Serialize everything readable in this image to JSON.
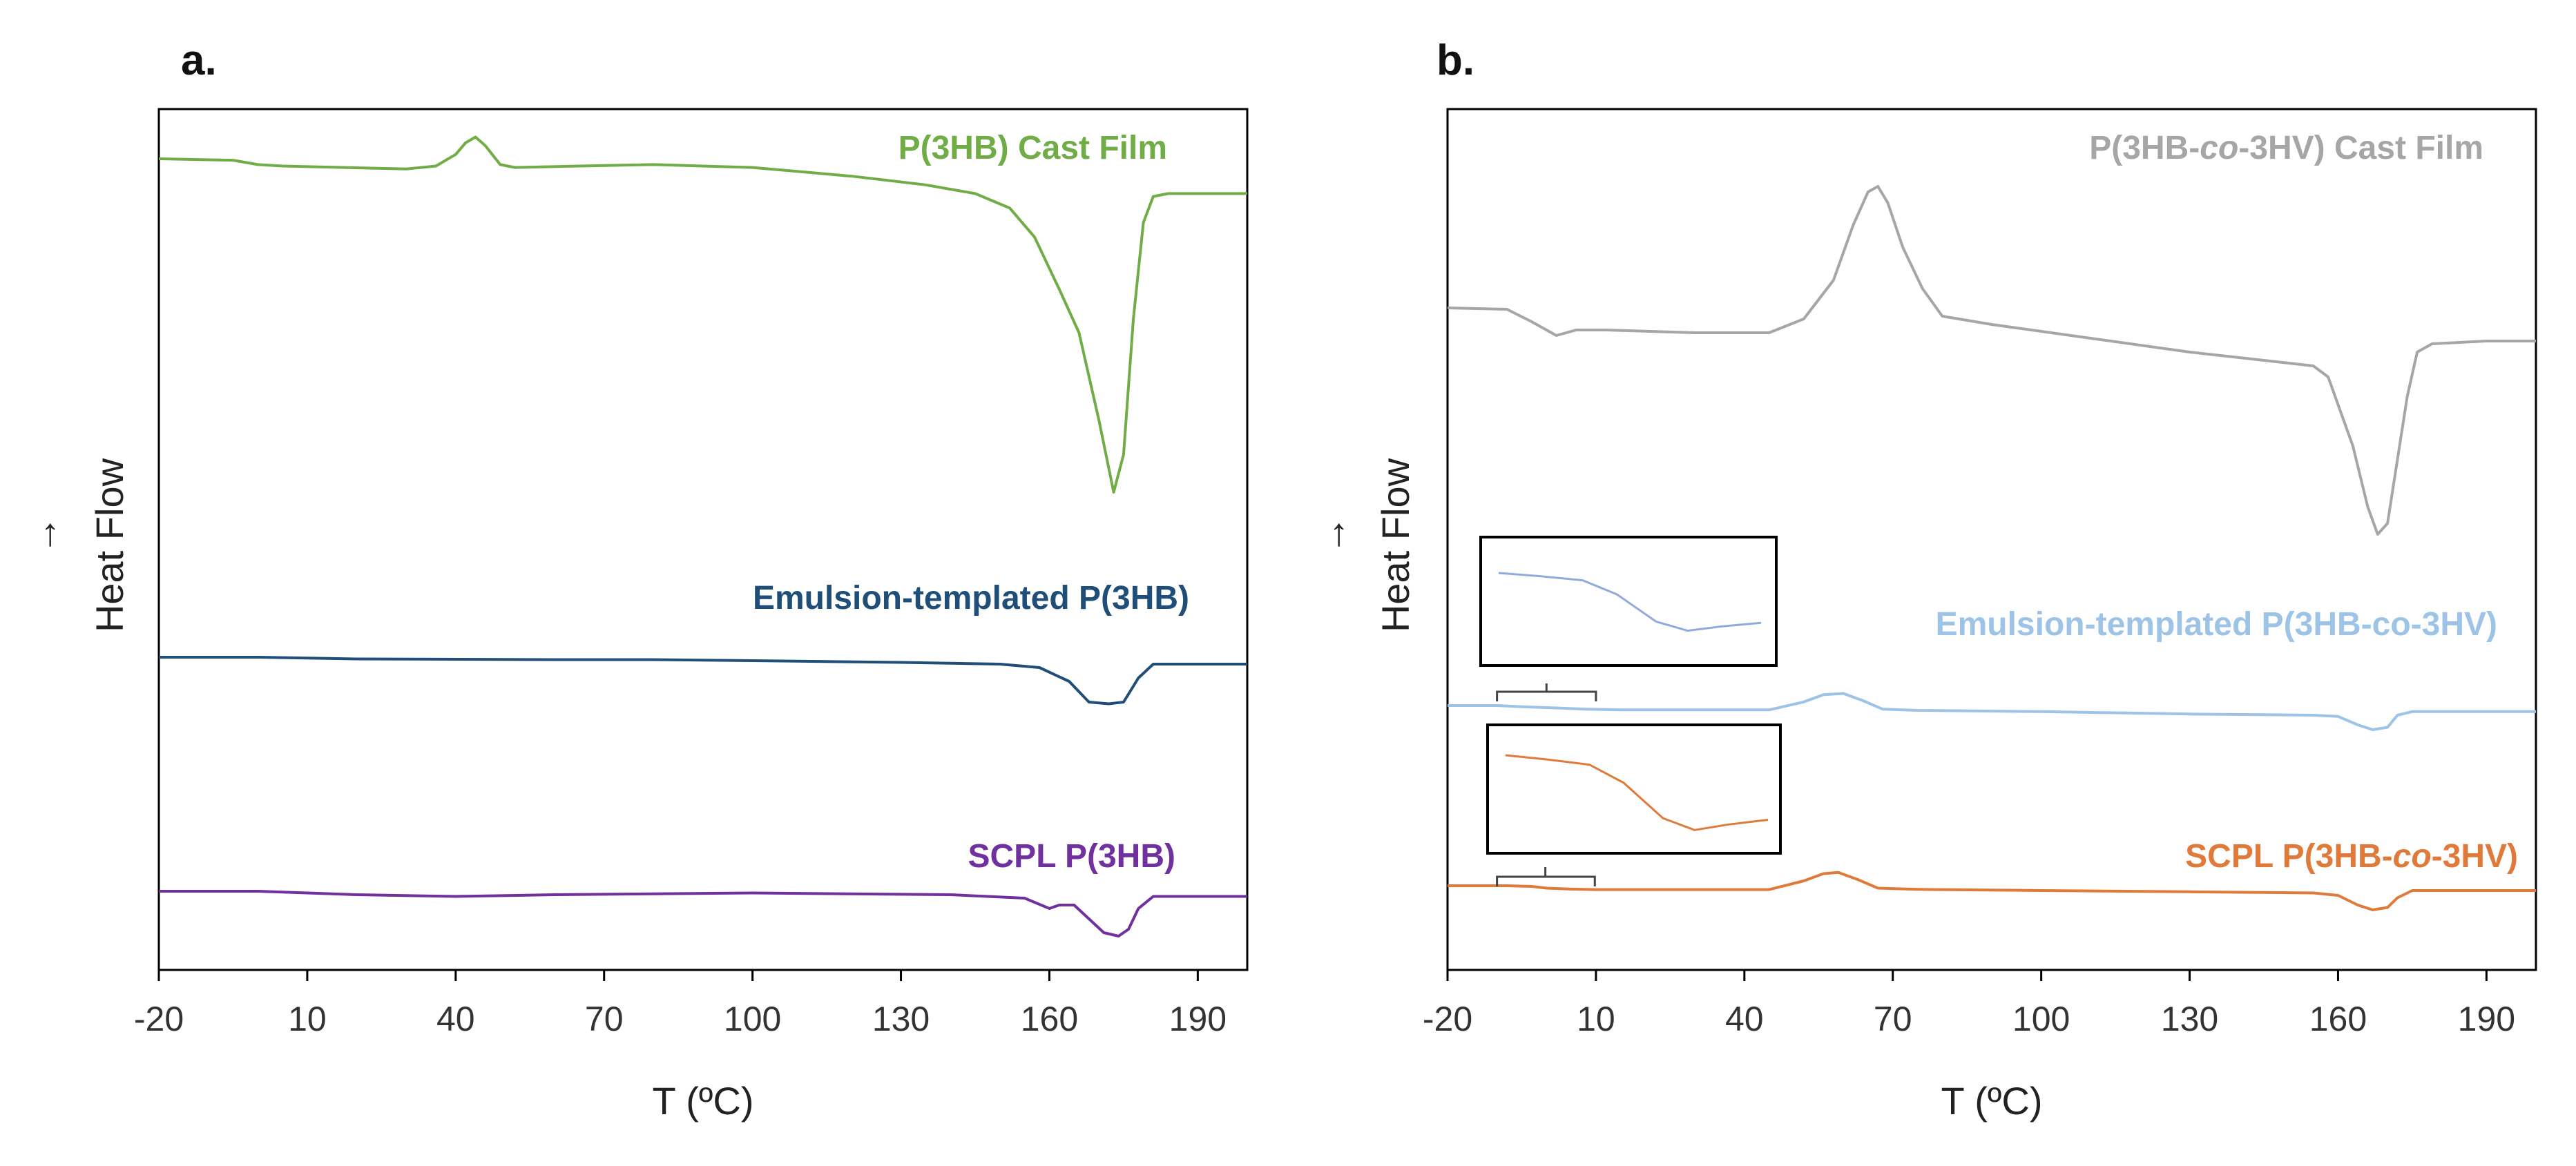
{
  "figure": {
    "panel_a_label": "a.",
    "panel_b_label": "b."
  },
  "chart_data": [
    {
      "type": "line",
      "panel": "a.",
      "xlabel": "T (ºC)",
      "ylabel": "Heat Flow",
      "ylabel_arrow": "→",
      "xlim": [
        -20,
        200
      ],
      "x_ticks": [
        "-20",
        "10",
        "40",
        "70",
        "100",
        "130",
        "160",
        "190"
      ],
      "y_units": "arbitrary (stacked, endo down)",
      "series": [
        {
          "name": "P(3HB) Cast Film",
          "color": "#70ad47",
          "label_position": "top-right",
          "points": [
            [
              -20,
              0
            ],
            [
              -5,
              -0.5
            ],
            [
              0,
              -2
            ],
            [
              5,
              -2.5
            ],
            [
              30,
              -3.5
            ],
            [
              36,
              -2.5
            ],
            [
              40,
              1.5
            ],
            [
              42,
              5.5
            ],
            [
              44,
              7.5
            ],
            [
              46,
              4.5
            ],
            [
              49,
              -2
            ],
            [
              52,
              -3
            ],
            [
              65,
              -2.5
            ],
            [
              80,
              -2
            ],
            [
              100,
              -3
            ],
            [
              120,
              -6
            ],
            [
              135,
              -9
            ],
            [
              145,
              -12
            ],
            [
              152,
              -17
            ],
            [
              157,
              -27
            ],
            [
              162,
              -45
            ],
            [
              166,
              -60
            ],
            [
              170,
              -90
            ],
            [
              173,
              -115
            ],
            [
              175,
              -102
            ],
            [
              177,
              -55
            ],
            [
              179,
              -22
            ],
            [
              181,
              -13
            ],
            [
              184,
              -12
            ],
            [
              200,
              -12
            ]
          ]
        },
        {
          "name": "Emulsion-templated P(3HB)",
          "color": "#1f4e79",
          "label_position": "center-right",
          "points": [
            [
              -20,
              0
            ],
            [
              0,
              0
            ],
            [
              20,
              -0.5
            ],
            [
              60,
              -0.7
            ],
            [
              80,
              -0.7
            ],
            [
              100,
              -1
            ],
            [
              130,
              -1.5
            ],
            [
              150,
              -2
            ],
            [
              158,
              -3
            ],
            [
              164,
              -7
            ],
            [
              168,
              -13
            ],
            [
              172,
              -13.5
            ],
            [
              175,
              -13
            ],
            [
              178,
              -6
            ],
            [
              181,
              -2
            ],
            [
              183,
              -2
            ],
            [
              200,
              -2
            ]
          ]
        },
        {
          "name": "SCPL P(3HB)",
          "color": "#7030a0",
          "label_position": "bottom-right",
          "points": [
            [
              -20,
              0
            ],
            [
              0,
              0
            ],
            [
              20,
              -1
            ],
            [
              40,
              -1.5
            ],
            [
              60,
              -1
            ],
            [
              100,
              -0.5
            ],
            [
              140,
              -1
            ],
            [
              155,
              -2
            ],
            [
              160,
              -5
            ],
            [
              162,
              -4
            ],
            [
              165,
              -4
            ],
            [
              168,
              -8
            ],
            [
              171,
              -12
            ],
            [
              174,
              -13
            ],
            [
              176,
              -11
            ],
            [
              178,
              -5
            ],
            [
              181,
              -1.5
            ],
            [
              200,
              -1.5
            ]
          ]
        }
      ]
    },
    {
      "type": "line",
      "panel": "b.",
      "xlabel": "T (ºC)",
      "ylabel": "Heat Flow",
      "ylabel_arrow": "→",
      "xlim": [
        -20,
        200
      ],
      "x_ticks": [
        "-20",
        "10",
        "40",
        "70",
        "100",
        "130",
        "160",
        "190"
      ],
      "y_units": "arbitrary (stacked, endo down)",
      "series": [
        {
          "name": "P(3HB-co-3HV) Cast Film",
          "name_parts": [
            "P(3HB-",
            "co",
            "-3HV) Cast Film"
          ],
          "color": "#a6a6a6",
          "label_position": "top-right",
          "points": [
            [
              -20,
              0
            ],
            [
              -8,
              -0.5
            ],
            [
              -3,
              -5
            ],
            [
              0,
              -8
            ],
            [
              2,
              -10
            ],
            [
              6,
              -8
            ],
            [
              12,
              -8
            ],
            [
              30,
              -9
            ],
            [
              45,
              -9
            ],
            [
              52,
              -4
            ],
            [
              58,
              10
            ],
            [
              62,
              30
            ],
            [
              65,
              42
            ],
            [
              67,
              44
            ],
            [
              69,
              38
            ],
            [
              72,
              22
            ],
            [
              76,
              7
            ],
            [
              80,
              -3
            ],
            [
              90,
              -6
            ],
            [
              110,
              -11
            ],
            [
              130,
              -16
            ],
            [
              150,
              -20
            ],
            [
              155,
              -21
            ],
            [
              158,
              -25
            ],
            [
              163,
              -50
            ],
            [
              166,
              -72
            ],
            [
              168,
              -82
            ],
            [
              170,
              -78
            ],
            [
              172,
              -55
            ],
            [
              174,
              -32
            ],
            [
              176,
              -16
            ],
            [
              179,
              -13
            ],
            [
              190,
              -12
            ],
            [
              200,
              -12
            ]
          ]
        },
        {
          "name": "Emulsion-templated P(3HB-co-3HV)",
          "color": "#9dc3e6",
          "label_position": "center-right",
          "points": [
            [
              -20,
              0
            ],
            [
              -10,
              0
            ],
            [
              -5,
              -0.5
            ],
            [
              2,
              -1
            ],
            [
              8,
              -1.5
            ],
            [
              15,
              -1.8
            ],
            [
              45,
              -1.8
            ],
            [
              52,
              1.5
            ],
            [
              56,
              4.5
            ],
            [
              60,
              5
            ],
            [
              64,
              2
            ],
            [
              68,
              -1.5
            ],
            [
              75,
              -2
            ],
            [
              100,
              -2.5
            ],
            [
              130,
              -3.5
            ],
            [
              155,
              -4
            ],
            [
              160,
              -4.5
            ],
            [
              164,
              -8
            ],
            [
              167,
              -10
            ],
            [
              170,
              -9
            ],
            [
              172,
              -4
            ],
            [
              175,
              -2.5
            ],
            [
              200,
              -2.5
            ]
          ]
        },
        {
          "name": "SCPL P(3HB-co-3HV)",
          "name_parts": [
            "SCPL P(3HB-",
            "co",
            "-3HV)"
          ],
          "color": "#e07a3a",
          "label_position": "bottom-right",
          "points": [
            [
              -20,
              0
            ],
            [
              -8,
              0
            ],
            [
              -3,
              -0.3
            ],
            [
              0,
              -1
            ],
            [
              5,
              -1.4
            ],
            [
              10,
              -1.6
            ],
            [
              45,
              -1.6
            ],
            [
              52,
              2
            ],
            [
              56,
              5
            ],
            [
              59,
              5.5
            ],
            [
              63,
              2.5
            ],
            [
              67,
              -1
            ],
            [
              75,
              -1.5
            ],
            [
              100,
              -2
            ],
            [
              130,
              -2.5
            ],
            [
              155,
              -3
            ],
            [
              160,
              -4
            ],
            [
              164,
              -8
            ],
            [
              167,
              -10
            ],
            [
              170,
              -9
            ],
            [
              172,
              -5
            ],
            [
              175,
              -2
            ],
            [
              200,
              -2
            ]
          ]
        }
      ],
      "insets": [
        {
          "zoom_of": "Emulsion-templated P(3HB-co-3HV)",
          "x_range": [
            -10,
            10
          ],
          "color": "#8faadc"
        },
        {
          "zoom_of": "SCPL P(3HB-co-3HV)",
          "x_range": [
            -10,
            0
          ],
          "color": "#e07a3a"
        }
      ]
    }
  ]
}
